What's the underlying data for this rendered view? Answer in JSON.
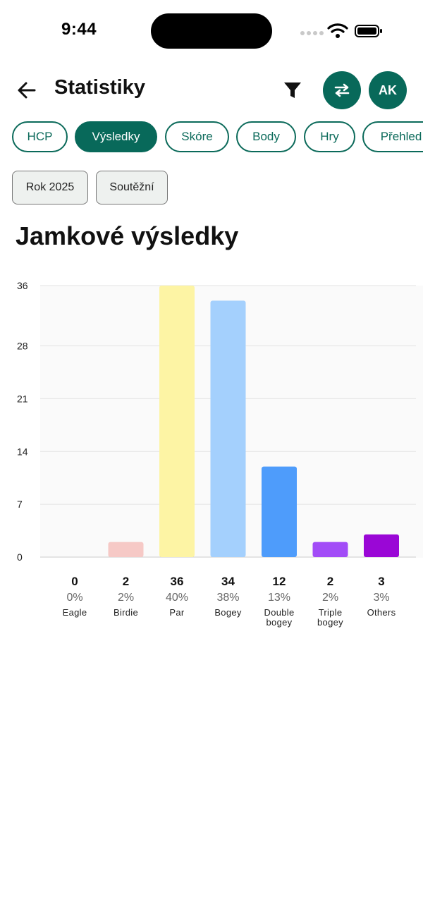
{
  "status_bar": {
    "time": "9:44"
  },
  "header": {
    "title": "Statistiky",
    "avatar_initials": "AK"
  },
  "tabs": [
    {
      "label": "HCP",
      "active": false
    },
    {
      "label": "Výsledky",
      "active": true
    },
    {
      "label": "Skóre",
      "active": false
    },
    {
      "label": "Body",
      "active": false
    },
    {
      "label": "Hry",
      "active": false
    },
    {
      "label": "Přehled",
      "active": false
    }
  ],
  "filters": [
    {
      "label": "Rok 2025"
    },
    {
      "label": "Soutěžní"
    }
  ],
  "section": {
    "title": "Jamkové výsledky"
  },
  "colors": {
    "accent": "#08695a"
  },
  "chart_data": {
    "type": "bar",
    "categories": [
      [
        "Eagle"
      ],
      [
        "Birdie"
      ],
      [
        "Par"
      ],
      [
        "Bogey"
      ],
      [
        "Double",
        "bogey"
      ],
      [
        "Triple",
        "bogey"
      ],
      [
        "Others"
      ]
    ],
    "values": [
      0,
      2,
      36,
      34,
      12,
      2,
      3
    ],
    "percentages": [
      "0%",
      "2%",
      "40%",
      "38%",
      "13%",
      "2%",
      "3%"
    ],
    "colors": [
      "#f4c4c4",
      "#f6c9c6",
      "#fdf4a4",
      "#a4d0fd",
      "#4e9cfb",
      "#a24cf7",
      "#9a07d6"
    ],
    "y_ticks": [
      "0",
      "7",
      "14",
      "21",
      "28",
      "36"
    ],
    "ylim": [
      0,
      36
    ],
    "grid": true
  }
}
